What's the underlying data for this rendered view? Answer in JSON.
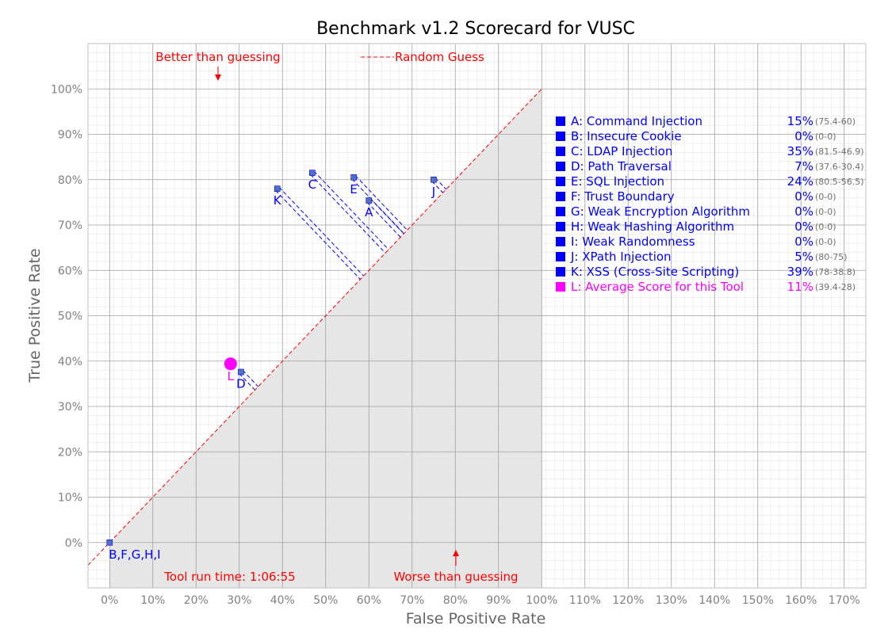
{
  "colors": {
    "series": "#0000ff",
    "average": "#ff00ff",
    "annotation": "#ff0000",
    "point_fill": "#4f72b8",
    "worse_region": "#e6e6e6",
    "major_grid": "#a0a0a0",
    "minor_grid": "#e8e8e8",
    "tick_text": "#808080",
    "range_text": "#707070"
  },
  "chart_data": {
    "type": "scatter",
    "title": "Benchmark v1.2 Scorecard for VUSC",
    "xlabel": "False Positive Rate",
    "ylabel": "True Positive Rate",
    "xlim": [
      -5,
      175
    ],
    "ylim": [
      -10,
      110
    ],
    "x_ticks": [
      "0%",
      "10%",
      "20%",
      "30%",
      "40%",
      "50%",
      "60%",
      "70%",
      "80%",
      "90%",
      "100%",
      "110%",
      "120%",
      "130%",
      "140%",
      "150%",
      "160%",
      "170%"
    ],
    "y_ticks": [
      "0%",
      "10%",
      "20%",
      "30%",
      "40%",
      "50%",
      "60%",
      "70%",
      "80%",
      "90%",
      "100%"
    ],
    "grid": true,
    "shaded_region": "below the random-guess diagonal, from 0% to 100% false positive rate",
    "legend_position": "right",
    "reference_line": {
      "label": "Random Guess",
      "style": "dashed",
      "from": [
        -5,
        -5
      ],
      "to": [
        100,
        100
      ]
    },
    "annotations": {
      "better": "Better than guessing",
      "worse": "Worse than guessing",
      "runtime": "Tool run time: 1:06:55"
    },
    "points": [
      {
        "label": "A",
        "name": "Command Injection",
        "fpr": 60.0,
        "tpr": 75.4,
        "score": "15%",
        "range": "(75.4-60)"
      },
      {
        "label": "B,F,G,H,I",
        "name": "Insecure Cookie / Trust Boundary / Weak Encryption Algorithm / Weak Hashing Algorithm / Weak Randomness",
        "fpr": 0,
        "tpr": 0,
        "score": "0%",
        "range": "(0-0)"
      },
      {
        "label": "C",
        "name": "LDAP Injection",
        "fpr": 46.9,
        "tpr": 81.5,
        "score": "35%",
        "range": "(81.5-46.9)"
      },
      {
        "label": "D",
        "name": "Path Traversal",
        "fpr": 30.4,
        "tpr": 37.6,
        "score": "7%",
        "range": "(37.6-30.4)"
      },
      {
        "label": "E",
        "name": "SQL Injection",
        "fpr": 56.5,
        "tpr": 80.5,
        "score": "24%",
        "range": "(80.5-56.5)"
      },
      {
        "label": "J",
        "name": "XPath Injection",
        "fpr": 75.0,
        "tpr": 80.0,
        "score": "5%",
        "range": "(80-75)"
      },
      {
        "label": "K",
        "name": "XSS (Cross-Site Scripting)",
        "fpr": 38.8,
        "tpr": 78.0,
        "score": "39%",
        "range": "(78-38.8)"
      }
    ],
    "average": {
      "label": "L",
      "fpr": 28.0,
      "tpr": 39.4
    },
    "legend": [
      {
        "text": "A: Command Injection",
        "score": "15%",
        "range": "(75.4-60)",
        "highlight": false
      },
      {
        "text": "B: Insecure Cookie",
        "score": "0%",
        "range": "(0-0)",
        "highlight": false
      },
      {
        "text": "C: LDAP Injection",
        "score": "35%",
        "range": "(81.5-46.9)",
        "highlight": false
      },
      {
        "text": "D: Path Traversal",
        "score": "7%",
        "range": "(37.6-30.4)",
        "highlight": false
      },
      {
        "text": "E: SQL Injection",
        "score": "24%",
        "range": "(80.5-56.5)",
        "highlight": false
      },
      {
        "text": "F: Trust Boundary",
        "score": "0%",
        "range": "(0-0)",
        "highlight": false
      },
      {
        "text": "G: Weak Encryption Algorithm",
        "score": "0%",
        "range": "(0-0)",
        "highlight": false
      },
      {
        "text": "H: Weak Hashing Algorithm",
        "score": "0%",
        "range": "(0-0)",
        "highlight": false
      },
      {
        "text": "I:   Weak Randomness",
        "score": "0%",
        "range": "(0-0)",
        "highlight": false
      },
      {
        "text": "J:  XPath Injection",
        "score": "5%",
        "range": "(80-75)",
        "highlight": false
      },
      {
        "text": "K: XSS (Cross-Site Scripting)",
        "score": "39%",
        "range": "(78-38.8)",
        "highlight": false
      },
      {
        "text": "L: Average Score for this Tool",
        "score": "11%",
        "range": "(39.4-28)",
        "highlight": true
      }
    ]
  }
}
